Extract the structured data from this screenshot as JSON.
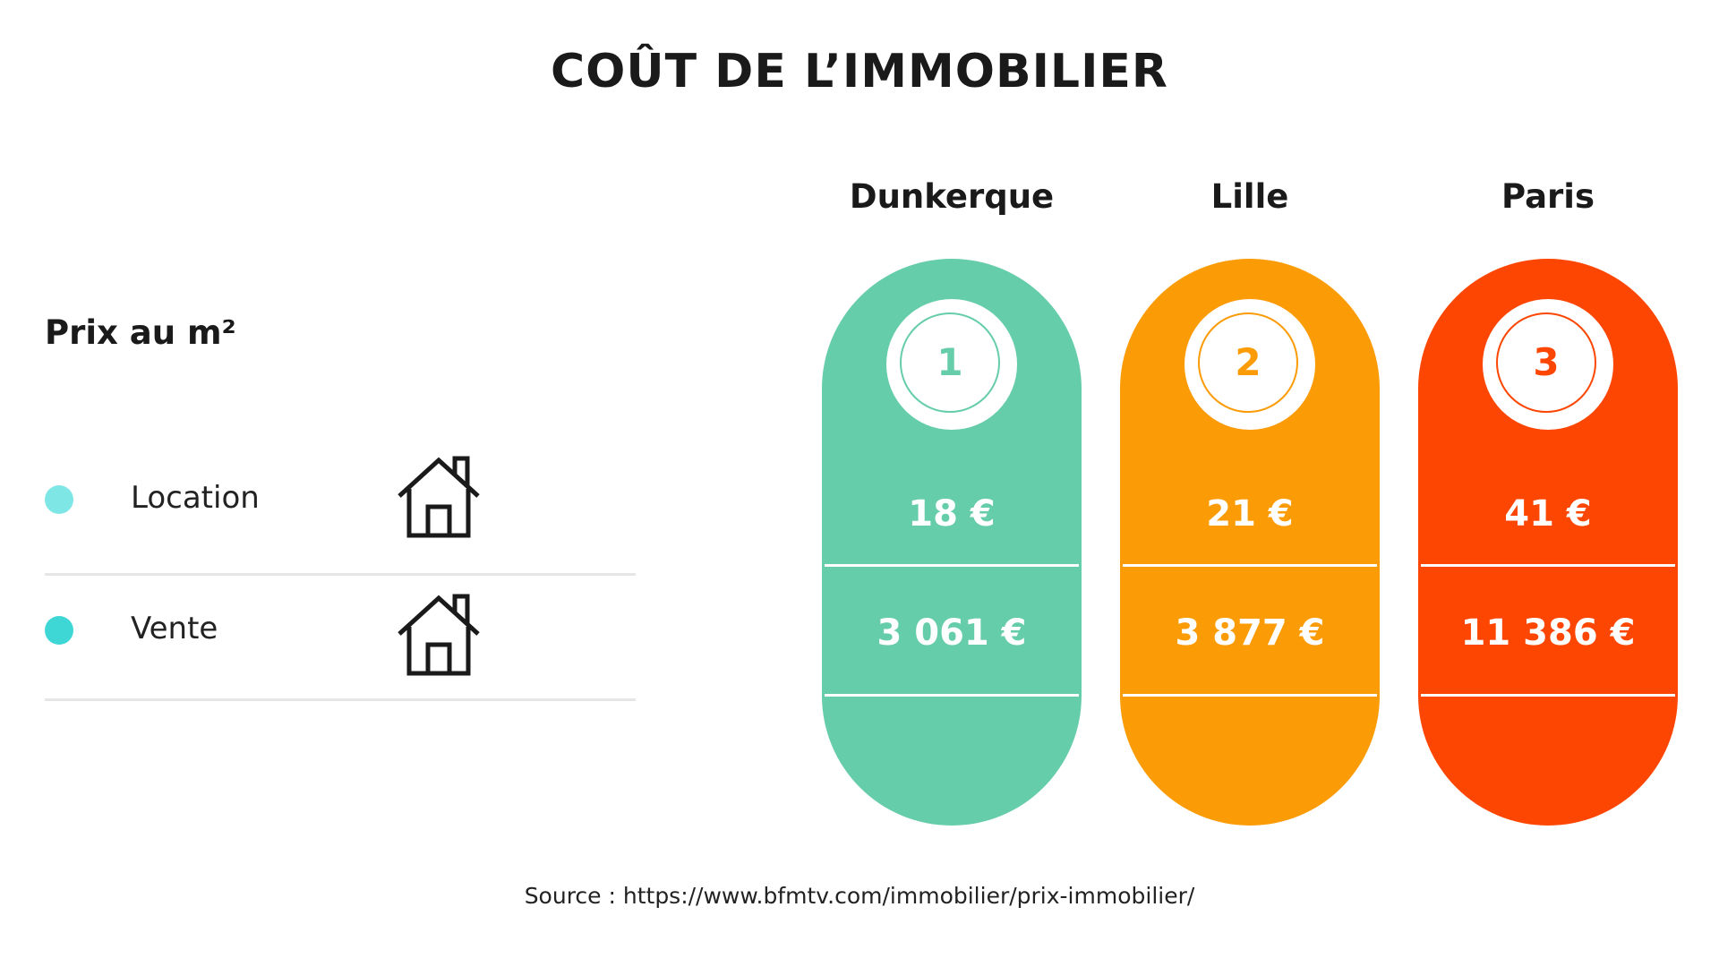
{
  "title": "COÛT DE L’IMMOBILIER",
  "legend": {
    "title": "Prix au m²",
    "items": [
      {
        "label": "Location",
        "color": "#7fe6e6",
        "icon": "house-icon"
      },
      {
        "label": "Vente",
        "color": "#3fd6d6",
        "icon": "house-icon"
      }
    ]
  },
  "chart_data": {
    "type": "table",
    "title": "COÛT DE L’IMMOBILIER",
    "categories": [
      "Dunkerque",
      "Lille",
      "Paris"
    ],
    "ranks": [
      "1",
      "2",
      "3"
    ],
    "colors": [
      "#66cdaa",
      "#fb9b06",
      "#fd4602"
    ],
    "series": [
      {
        "name": "Location",
        "values": [
          18,
          21,
          41
        ],
        "labels": [
          "18 €",
          "21 €",
          "41 €"
        ]
      },
      {
        "name": "Vente",
        "values": [
          3061,
          3877,
          11386
        ],
        "labels": [
          "3 061 €",
          "3 877 €",
          "11 386 €"
        ]
      }
    ]
  },
  "source": "Source : https://www.bfmtv.com/immobilier/prix-immobilier/"
}
